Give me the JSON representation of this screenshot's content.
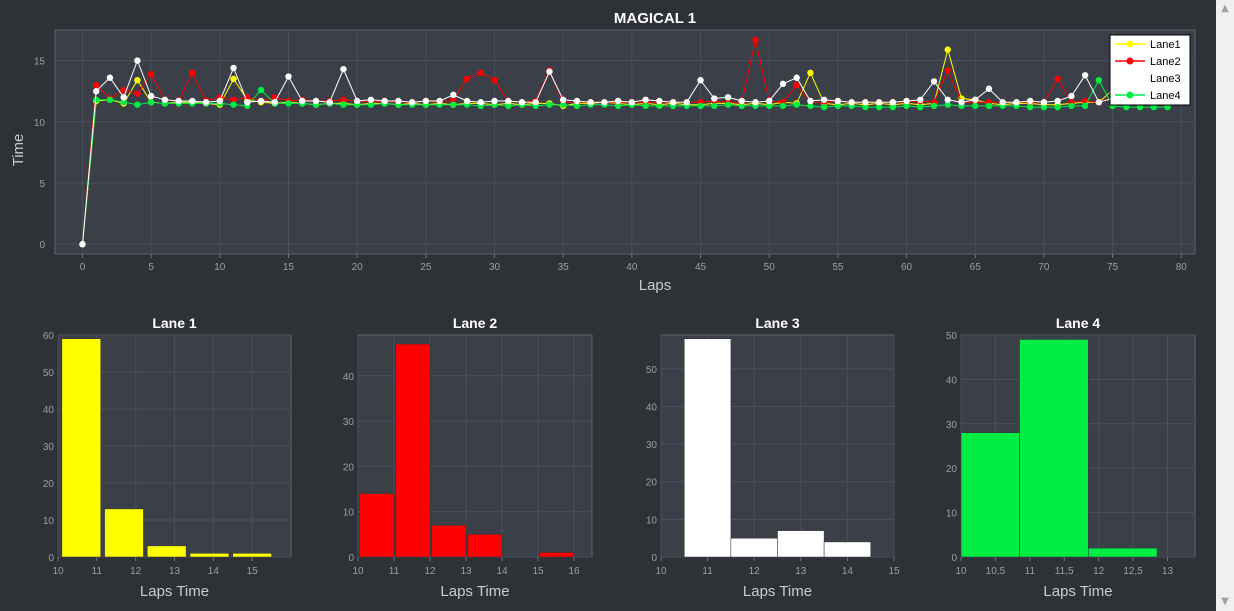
{
  "chart_data": [
    {
      "type": "line",
      "title": "MAGICAL 1",
      "xlabel": "Laps",
      "ylabel": "Time",
      "xlim": [
        -2,
        81
      ],
      "ylim": [
        -0.8,
        17.5
      ],
      "xticks": [
        0,
        5,
        10,
        15,
        20,
        25,
        30,
        35,
        40,
        45,
        50,
        55,
        60,
        65,
        70,
        75,
        80
      ],
      "yticks": [
        0,
        5,
        10,
        15
      ],
      "grid": true,
      "legend_position": "top-right",
      "series": [
        {
          "name": "Lane1",
          "color": "#ffff00",
          "x": [
            0,
            1,
            2,
            3,
            4,
            5,
            6,
            7,
            8,
            9,
            10,
            11,
            12,
            13,
            14,
            15,
            16,
            17,
            18,
            19,
            20,
            21,
            22,
            23,
            24,
            25,
            26,
            27,
            28,
            29,
            30,
            31,
            32,
            33,
            34,
            35,
            36,
            37,
            38,
            39,
            40,
            41,
            42,
            43,
            44,
            45,
            46,
            47,
            48,
            49,
            50,
            51,
            52,
            53,
            54,
            55,
            56,
            57,
            58,
            59,
            60,
            61,
            62,
            63,
            64,
            65,
            66,
            67,
            68,
            69,
            70,
            71,
            72,
            73,
            74,
            75,
            76,
            77,
            78,
            79
          ],
          "y": [
            0,
            11.7,
            11.8,
            11.5,
            13.4,
            11.6,
            11.5,
            11.6,
            11.6,
            11.5,
            11.4,
            13.5,
            11.8,
            11.6,
            11.5,
            11.6,
            11.5,
            11.4,
            11.5,
            11.5,
            11.4,
            11.5,
            11.5,
            11.4,
            11.5,
            11.4,
            11.5,
            11.4,
            11.5,
            11.5,
            11.4,
            11.5,
            11.4,
            11.5,
            11.5,
            11.3,
            11.5,
            11.5,
            11.6,
            11.5,
            11.4,
            11.5,
            11.4,
            11.5,
            11.4,
            11.4,
            11.5,
            11.5,
            11.4,
            11.5,
            11.4,
            11.6,
            11.5,
            14.0,
            11.5,
            11.4,
            11.5,
            11.4,
            11.5,
            11.4,
            11.5,
            11.4,
            11.5,
            15.9,
            11.9,
            11.8,
            11.5,
            11.4,
            11.5,
            11.5,
            11.4,
            11.4,
            11.5,
            11.6,
            11.6,
            12.6,
            11.5,
            11.4,
            11.5,
            11.4
          ]
        },
        {
          "name": "Lane2",
          "color": "#ff0000",
          "x": [
            0,
            1,
            2,
            3,
            4,
            5,
            6,
            7,
            8,
            9,
            10,
            11,
            12,
            13,
            14,
            15,
            16,
            17,
            18,
            19,
            20,
            21,
            22,
            23,
            24,
            25,
            26,
            27,
            28,
            29,
            30,
            31,
            32,
            33,
            34,
            35,
            36,
            37,
            38,
            39,
            40,
            41,
            42,
            43,
            44,
            45,
            46,
            47,
            48,
            49,
            50,
            51,
            52,
            53,
            54,
            55,
            56,
            57,
            58,
            59,
            60,
            61,
            62,
            63,
            64,
            65,
            66,
            67,
            68,
            69,
            70,
            71,
            72,
            73,
            74,
            75,
            76,
            77,
            78,
            79
          ],
          "y": [
            0,
            13.0,
            11.9,
            12.6,
            12.3,
            13.9,
            11.8,
            11.7,
            14.0,
            11.7,
            12.0,
            11.8,
            12.0,
            11.7,
            12.0,
            11.7,
            11.8,
            11.7,
            11.7,
            11.8,
            11.7,
            11.6,
            11.7,
            11.6,
            11.6,
            11.7,
            11.6,
            11.8,
            13.5,
            14.0,
            13.4,
            11.7,
            11.6,
            11.7,
            14.2,
            11.6,
            11.6,
            11.6,
            11.6,
            11.6,
            11.6,
            11.6,
            11.6,
            11.6,
            11.6,
            11.6,
            11.7,
            11.6,
            11.6,
            16.7,
            11.7,
            11.6,
            13.0,
            11.6,
            11.6,
            11.7,
            11.6,
            11.6,
            11.6,
            11.6,
            11.6,
            11.7,
            11.6,
            14.2,
            11.6,
            11.6,
            11.6,
            11.6,
            11.6,
            11.6,
            11.6,
            13.5,
            11.6,
            11.7,
            11.6,
            12.0,
            11.6,
            11.6,
            11.6,
            11.6
          ]
        },
        {
          "name": "Lane3",
          "color": "#ffffff",
          "x": [
            0,
            1,
            2,
            3,
            4,
            5,
            6,
            7,
            8,
            9,
            10,
            11,
            12,
            13,
            14,
            15,
            16,
            17,
            18,
            19,
            20,
            21,
            22,
            23,
            24,
            25,
            26,
            27,
            28,
            29,
            30,
            31,
            32,
            33,
            34,
            35,
            36,
            37,
            38,
            39,
            40,
            41,
            42,
            43,
            44,
            45,
            46,
            47,
            48,
            49,
            50,
            51,
            52,
            53,
            54,
            55,
            56,
            57,
            58,
            59,
            60,
            61,
            62,
            63,
            64,
            65,
            66,
            67,
            68,
            69,
            70,
            71,
            72,
            73,
            74,
            75,
            76,
            77,
            78,
            79
          ],
          "y": [
            0,
            12.5,
            13.6,
            12.0,
            15.0,
            12.1,
            11.8,
            11.7,
            11.7,
            11.6,
            11.7,
            14.4,
            11.6,
            11.7,
            11.6,
            13.7,
            11.7,
            11.7,
            11.6,
            14.3,
            11.7,
            11.8,
            11.7,
            11.7,
            11.6,
            11.7,
            11.7,
            12.2,
            11.7,
            11.6,
            11.7,
            11.7,
            11.6,
            11.6,
            14.1,
            11.8,
            11.7,
            11.6,
            11.6,
            11.7,
            11.6,
            11.8,
            11.7,
            11.6,
            11.6,
            13.4,
            11.9,
            12.0,
            11.7,
            11.6,
            11.7,
            13.1,
            13.6,
            11.7,
            11.8,
            11.7,
            11.6,
            11.6,
            11.6,
            11.6,
            11.7,
            11.8,
            13.3,
            11.8,
            11.6,
            11.8,
            12.7,
            11.6,
            11.6,
            11.7,
            11.6,
            11.7,
            12.1,
            13.8,
            11.6,
            11.9,
            11.7,
            11.6,
            11.6,
            11.6
          ]
        },
        {
          "name": "Lane4",
          "color": "#00ee44",
          "x": [
            0,
            1,
            2,
            3,
            4,
            5,
            6,
            7,
            8,
            9,
            10,
            11,
            12,
            13,
            14,
            15,
            16,
            17,
            18,
            19,
            20,
            21,
            22,
            23,
            24,
            25,
            26,
            27,
            28,
            29,
            30,
            31,
            32,
            33,
            34,
            35,
            36,
            37,
            38,
            39,
            40,
            41,
            42,
            43,
            44,
            45,
            46,
            47,
            48,
            49,
            50,
            51,
            52,
            53,
            54,
            55,
            56,
            57,
            58,
            59,
            60,
            61,
            62,
            63,
            64,
            65,
            66,
            67,
            68,
            69,
            70,
            71,
            72,
            73,
            74,
            75,
            76,
            77,
            78,
            79
          ],
          "y": [
            0,
            11.8,
            11.8,
            11.6,
            11.4,
            11.6,
            11.5,
            11.5,
            11.5,
            11.5,
            11.5,
            11.4,
            11.3,
            12.6,
            11.5,
            11.5,
            11.5,
            11.4,
            11.5,
            11.4,
            11.4,
            11.4,
            11.5,
            11.4,
            11.4,
            11.4,
            11.4,
            11.4,
            11.4,
            11.3,
            11.4,
            11.3,
            11.4,
            11.3,
            11.4,
            11.4,
            11.3,
            11.4,
            11.4,
            11.3,
            11.4,
            11.3,
            11.3,
            11.3,
            11.3,
            11.3,
            11.3,
            11.4,
            11.3,
            11.3,
            11.3,
            11.3,
            11.4,
            11.3,
            11.2,
            11.3,
            11.3,
            11.2,
            11.2,
            11.2,
            11.3,
            11.2,
            11.3,
            11.4,
            11.3,
            11.3,
            11.3,
            11.3,
            11.3,
            11.2,
            11.2,
            11.2,
            11.3,
            11.3,
            13.4,
            11.3,
            11.2,
            11.2,
            11.2,
            11.2
          ]
        }
      ]
    },
    {
      "type": "bar",
      "title": "Lane 1",
      "xlabel": "Laps Time",
      "color": "#ffff00",
      "xlim": [
        10,
        16
      ],
      "ylim": [
        0,
        60
      ],
      "xticks": [
        "10",
        "11",
        "12",
        "13",
        "14",
        "15"
      ],
      "yticks": [
        "0",
        "10",
        "20",
        "30",
        "40",
        "50",
        "60"
      ],
      "bins": [
        [
          10.1,
          11.1
        ],
        [
          11.2,
          12.2
        ],
        [
          12.3,
          13.3
        ],
        [
          13.4,
          14.4
        ],
        [
          14.5,
          15.5
        ]
      ],
      "values": [
        59,
        13,
        3,
        1,
        1
      ]
    },
    {
      "type": "bar",
      "title": "Lane 2",
      "xlabel": "Laps Time",
      "color": "#ff0000",
      "xlim": [
        10,
        16.5
      ],
      "ylim": [
        0,
        49
      ],
      "xticks": [
        "10",
        "11",
        "12",
        "13",
        "14",
        "15",
        "16"
      ],
      "yticks": [
        "0",
        "10",
        "20",
        "30",
        "40"
      ],
      "bins": [
        [
          10.05,
          11.0
        ],
        [
          11.05,
          12.0
        ],
        [
          12.05,
          13.0
        ],
        [
          13.05,
          14.0
        ],
        [
          15.05,
          16.0
        ]
      ],
      "values": [
        14,
        47,
        7,
        5,
        1
      ]
    },
    {
      "type": "bar",
      "title": "Lane 3",
      "xlabel": "Laps Time",
      "color": "#ffffff",
      "xlim": [
        10,
        15
      ],
      "ylim": [
        0,
        59
      ],
      "xticks": [
        "10",
        "11",
        "12",
        "13",
        "14",
        "15"
      ],
      "yticks": [
        "0",
        "10",
        "20",
        "30",
        "40",
        "50"
      ],
      "bins": [
        [
          10.5,
          11.5
        ],
        [
          11.5,
          12.5
        ],
        [
          12.5,
          13.5
        ],
        [
          13.5,
          14.5
        ]
      ],
      "values": [
        58,
        5,
        7,
        4
      ]
    },
    {
      "type": "bar",
      "title": "Lane 4",
      "xlabel": "Laps Time",
      "color": "#00ee44",
      "xlim": [
        10,
        13.4
      ],
      "ylim": [
        0,
        50
      ],
      "xticks": [
        "10",
        "10,5",
        "11",
        "11,5",
        "12",
        "12,5",
        "13"
      ],
      "yticks": [
        "0",
        "10",
        "20",
        "30",
        "40",
        "50"
      ],
      "bins": [
        [
          10.0,
          10.85
        ],
        [
          10.85,
          11.85
        ],
        [
          11.85,
          12.85
        ]
      ],
      "values": [
        28,
        49,
        2
      ]
    }
  ]
}
